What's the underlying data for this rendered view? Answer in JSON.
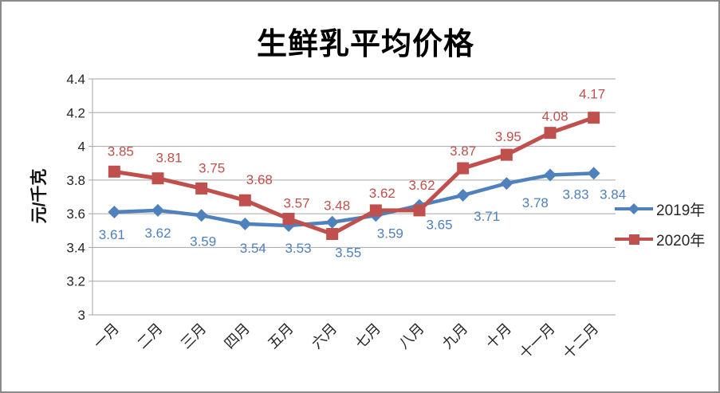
{
  "chart_data": {
    "type": "line",
    "title": "生鲜乳平均价格",
    "ylabel": "元/千克",
    "categories": [
      "一月",
      "二月",
      "三月",
      "四月",
      "五月",
      "六月",
      "七月",
      "八月",
      "九月",
      "十月",
      "十一月",
      "十二月"
    ],
    "series": [
      {
        "name": "2019年",
        "color": "#4F81BD",
        "marker": "diamond",
        "label_position": "below",
        "values": [
          3.61,
          3.62,
          3.59,
          3.54,
          3.53,
          3.55,
          3.59,
          3.65,
          3.71,
          3.78,
          3.83,
          3.84
        ]
      },
      {
        "name": "2020年",
        "color": "#C0504D",
        "marker": "square",
        "label_position": "above",
        "values": [
          3.85,
          3.81,
          3.75,
          3.68,
          3.57,
          3.48,
          3.62,
          3.62,
          3.87,
          3.95,
          4.08,
          4.17
        ]
      }
    ],
    "ylim": [
      3,
      4.4
    ],
    "yticks": [
      3,
      3.2,
      3.4,
      3.6,
      3.8,
      4,
      4.2,
      4.4
    ],
    "ytick_labels": [
      "3",
      "3.2",
      "3.4",
      "3.6",
      "3.8",
      "4",
      "4.2",
      "4.4"
    ],
    "grid": true,
    "legend_position": "right",
    "colors": {
      "grid": "#A6A6A6",
      "tick_text": "#262626"
    }
  }
}
